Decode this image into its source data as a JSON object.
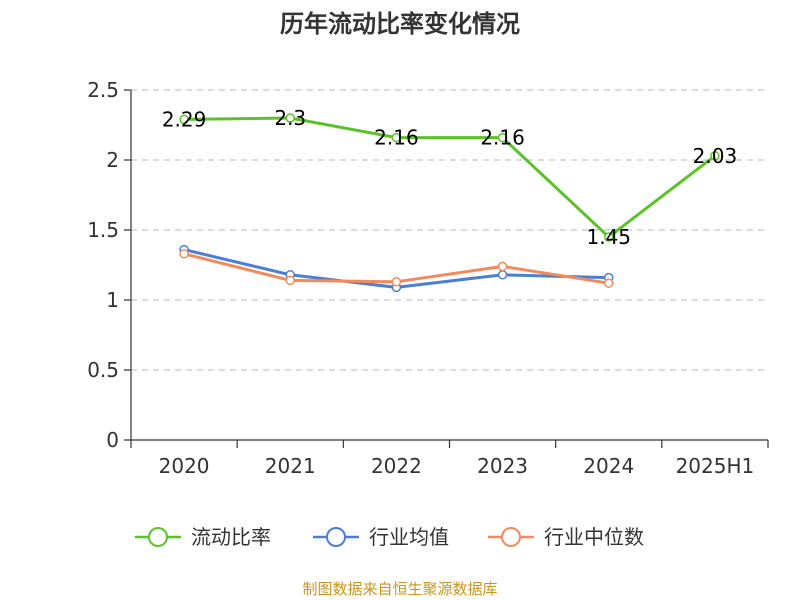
{
  "chart_data": {
    "type": "line",
    "title": "历年流动比率变化情况",
    "categories": [
      "2020",
      "2021",
      "2022",
      "2023",
      "2024",
      "2025H1"
    ],
    "ylim": [
      0,
      2.5
    ],
    "yticks": [
      "0",
      "0.5",
      "1",
      "1.5",
      "2",
      "2.5"
    ],
    "grid": true,
    "legend_position": "bottom",
    "series": [
      {
        "name": "流动比率",
        "color": "#5cc22a",
        "values": [
          2.29,
          2.3,
          2.16,
          2.16,
          1.45,
          2.03
        ],
        "labels": [
          "2.29",
          "2.3",
          "2.16",
          "2.16",
          "1.45",
          "2.03"
        ]
      },
      {
        "name": "行业均值",
        "color": "#4a7fd6",
        "values": [
          1.36,
          1.18,
          1.09,
          1.18,
          1.16,
          null
        ]
      },
      {
        "name": "行业中位数",
        "color": "#f28b5b",
        "values": [
          1.33,
          1.14,
          1.13,
          1.24,
          1.12,
          null
        ]
      }
    ]
  },
  "source": "制图数据来自恒生聚源数据库"
}
